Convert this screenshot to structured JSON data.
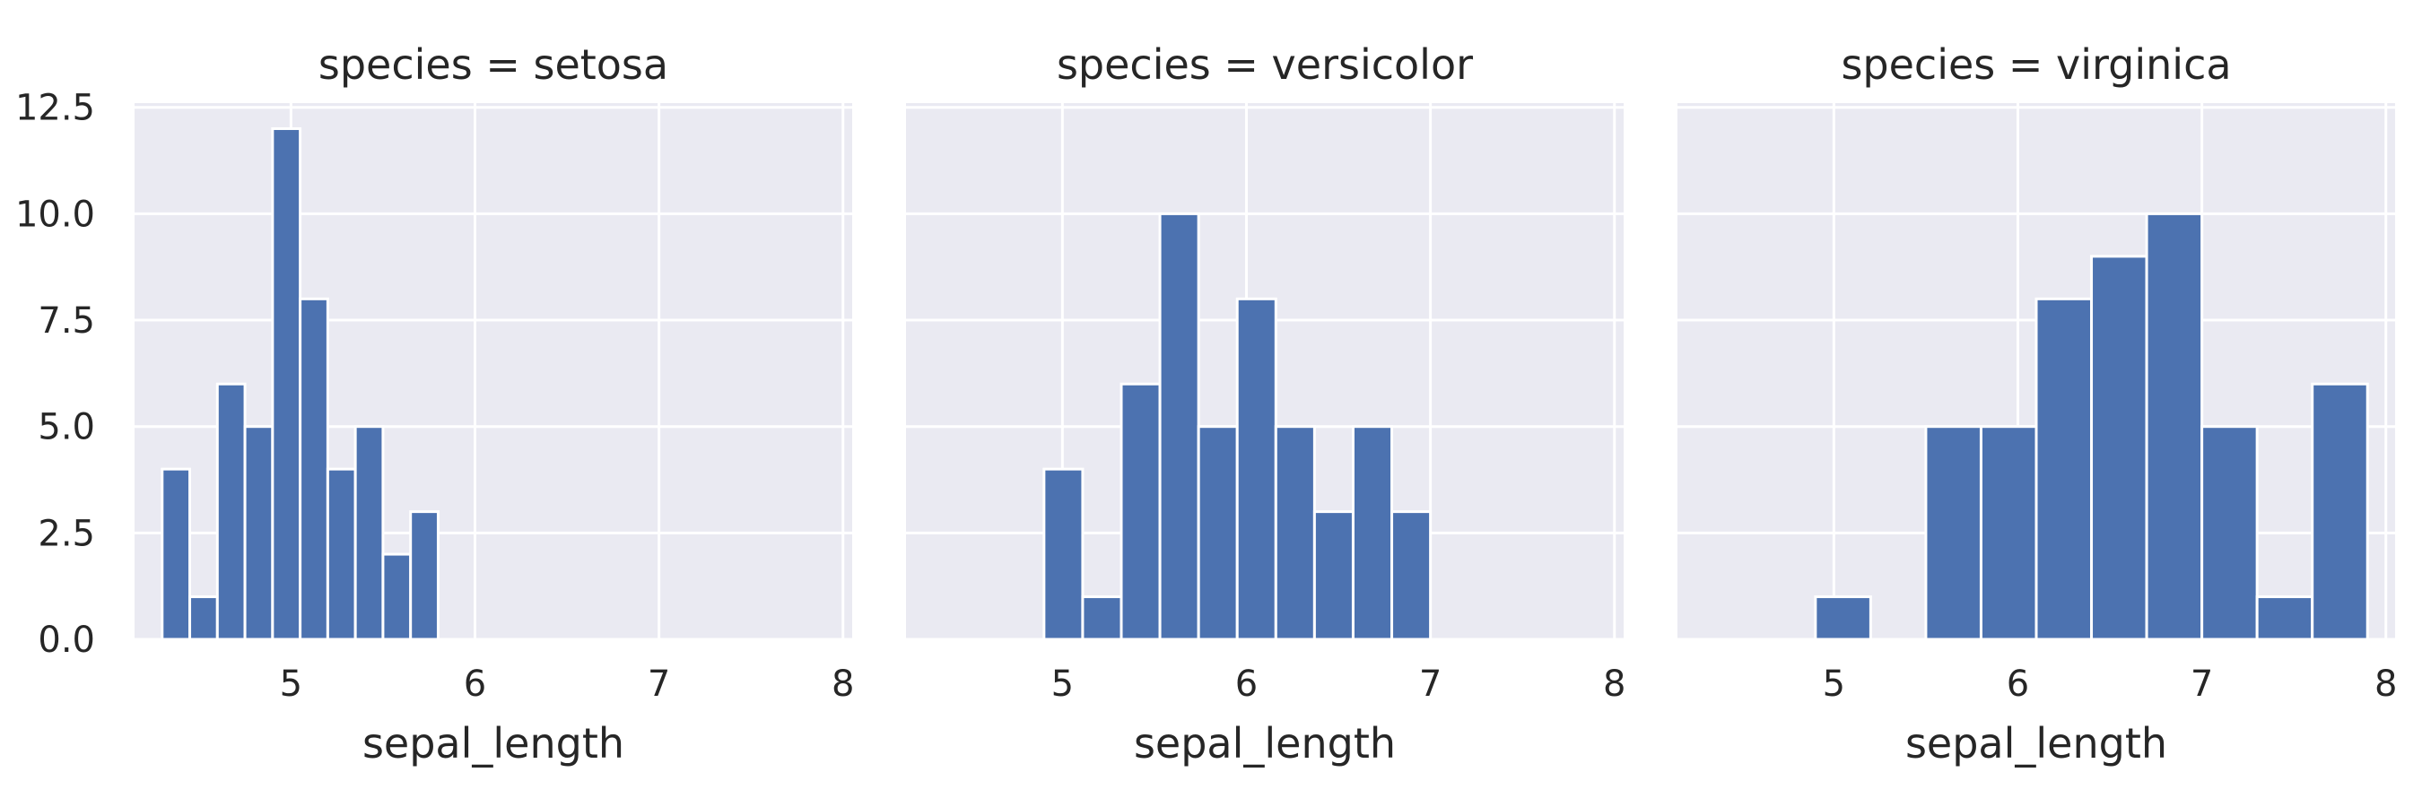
{
  "chart_data": [
    {
      "type": "bar",
      "title": "species = setosa",
      "xlabel": "sepal_length",
      "ylabel": "",
      "xlim": [
        4.15,
        8.05
      ],
      "ylim": [
        0,
        12.6
      ],
      "xticks": [
        "5",
        "6",
        "7",
        "8"
      ],
      "yticks": [
        "0.0",
        "2.5",
        "5.0",
        "7.5",
        "10.0",
        "12.5"
      ],
      "bin_edges": [
        4.3,
        4.45,
        4.6,
        4.75,
        4.9,
        5.05,
        5.2,
        5.35,
        5.5,
        5.65,
        5.8
      ],
      "values": [
        4,
        1,
        6,
        5,
        12,
        8,
        4,
        5,
        2,
        3
      ]
    },
    {
      "type": "bar",
      "title": "species = versicolor",
      "xlabel": "sepal_length",
      "ylabel": "",
      "xlim": [
        4.15,
        8.05
      ],
      "ylim": [
        0,
        12.6
      ],
      "xticks": [
        "5",
        "6",
        "7",
        "8"
      ],
      "yticks": [
        "0.0",
        "2.5",
        "5.0",
        "7.5",
        "10.0",
        "12.5"
      ],
      "bin_edges": [
        4.9,
        5.11,
        5.32,
        5.53,
        5.74,
        5.95,
        6.16,
        6.37,
        6.58,
        6.79,
        7.0
      ],
      "values": [
        4,
        1,
        6,
        10,
        5,
        8,
        5,
        3,
        5,
        3
      ]
    },
    {
      "type": "bar",
      "title": "species = virginica",
      "xlabel": "sepal_length",
      "ylabel": "",
      "xlim": [
        4.15,
        8.05
      ],
      "ylim": [
        0,
        12.6
      ],
      "xticks": [
        "5",
        "6",
        "7",
        "8"
      ],
      "yticks": [
        "0.0",
        "2.5",
        "5.0",
        "7.5",
        "10.0",
        "12.5"
      ],
      "bin_edges": [
        4.9,
        5.2,
        5.5,
        5.8,
        6.1,
        6.4,
        6.7,
        7.0,
        7.3,
        7.6,
        7.9
      ],
      "values": [
        1,
        0,
        5,
        5,
        8,
        9,
        10,
        5,
        1,
        6
      ]
    }
  ],
  "colors": {
    "bar": "#4c72b0",
    "panel": "#eaeaf2",
    "grid": "#ffffff"
  },
  "grid": true
}
